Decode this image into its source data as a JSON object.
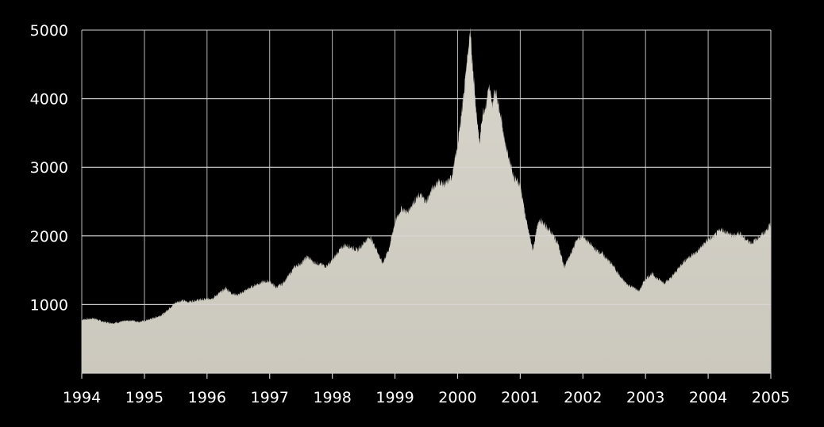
{
  "chart_data": {
    "type": "area",
    "title": "",
    "xlabel": "",
    "ylabel": "",
    "xlim": [
      1994,
      2005
    ],
    "ylim": [
      0,
      5000
    ],
    "x_ticks": [
      "1994",
      "1995",
      "1996",
      "1997",
      "1998",
      "1999",
      "2000",
      "2001",
      "2002",
      "2003",
      "2004",
      "2005"
    ],
    "y_ticks": [
      "1000",
      "2000",
      "3000",
      "4000",
      "5000"
    ],
    "grid": true,
    "legend": "none",
    "colors": {
      "background": "#000000",
      "area": "#d6d3c9",
      "grid": "#d9d9d9",
      "text": "#ffffff"
    },
    "series": [
      {
        "x": [
          1994.0,
          1994.1,
          1994.2,
          1994.3,
          1994.4,
          1994.5,
          1994.6,
          1994.7,
          1994.8,
          1994.9,
          1995.0,
          1995.1,
          1995.2,
          1995.3,
          1995.4,
          1995.5,
          1995.6,
          1995.7,
          1995.8,
          1995.9,
          1996.0,
          1996.1,
          1996.2,
          1996.3,
          1996.4,
          1996.5,
          1996.6,
          1996.7,
          1996.8,
          1996.9,
          1997.0,
          1997.1,
          1997.2,
          1997.3,
          1997.4,
          1997.5,
          1997.6,
          1997.7,
          1997.8,
          1997.9,
          1998.0,
          1998.1,
          1998.2,
          1998.3,
          1998.4,
          1998.5,
          1998.6,
          1998.7,
          1998.8,
          1998.9,
          1999.0,
          1999.1,
          1999.2,
          1999.3,
          1999.4,
          1999.5,
          1999.6,
          1999.7,
          1999.8,
          1999.9,
          2000.0,
          2000.05,
          2000.1,
          2000.15,
          2000.2,
          2000.25,
          2000.3,
          2000.35,
          2000.4,
          2000.45,
          2000.5,
          2000.55,
          2000.6,
          2000.65,
          2000.7,
          2000.75,
          2000.8,
          2000.85,
          2000.9,
          2000.95,
          2001.0,
          2001.1,
          2001.2,
          2001.3,
          2001.4,
          2001.5,
          2001.6,
          2001.7,
          2001.8,
          2001.9,
          2002.0,
          2002.1,
          2002.2,
          2002.3,
          2002.4,
          2002.5,
          2002.6,
          2002.7,
          2002.8,
          2002.9,
          2003.0,
          2003.1,
          2003.2,
          2003.3,
          2003.4,
          2003.5,
          2003.6,
          2003.7,
          2003.8,
          2003.9,
          2004.0,
          2004.1,
          2004.2,
          2004.3,
          2004.4,
          2004.5,
          2004.6,
          2004.7,
          2004.8,
          2004.9,
          2005.0
        ],
        "values": [
          780,
          790,
          800,
          760,
          740,
          730,
          745,
          760,
          770,
          750,
          760,
          790,
          820,
          860,
          950,
          1030,
          1060,
          1040,
          1060,
          1070,
          1080,
          1100,
          1170,
          1240,
          1160,
          1140,
          1200,
          1250,
          1300,
          1330,
          1340,
          1250,
          1300,
          1420,
          1550,
          1600,
          1700,
          1620,
          1590,
          1560,
          1640,
          1780,
          1870,
          1840,
          1790,
          1900,
          1990,
          1820,
          1600,
          1800,
          2200,
          2400,
          2350,
          2500,
          2600,
          2500,
          2700,
          2800,
          2750,
          2850,
          3300,
          3700,
          4100,
          4550,
          4950,
          4400,
          3800,
          3350,
          3800,
          3900,
          4200,
          3900,
          4150,
          3950,
          3700,
          3400,
          3200,
          3050,
          2850,
          2800,
          2750,
          2200,
          1800,
          2250,
          2150,
          2050,
          1900,
          1550,
          1720,
          1950,
          2000,
          1900,
          1800,
          1750,
          1650,
          1550,
          1400,
          1300,
          1250,
          1200,
          1380,
          1450,
          1370,
          1320,
          1380,
          1500,
          1620,
          1700,
          1750,
          1850,
          1950,
          2000,
          2100,
          2050,
          2000,
          2050,
          1950,
          1900,
          1980,
          2050,
          2180
        ]
      }
    ]
  }
}
